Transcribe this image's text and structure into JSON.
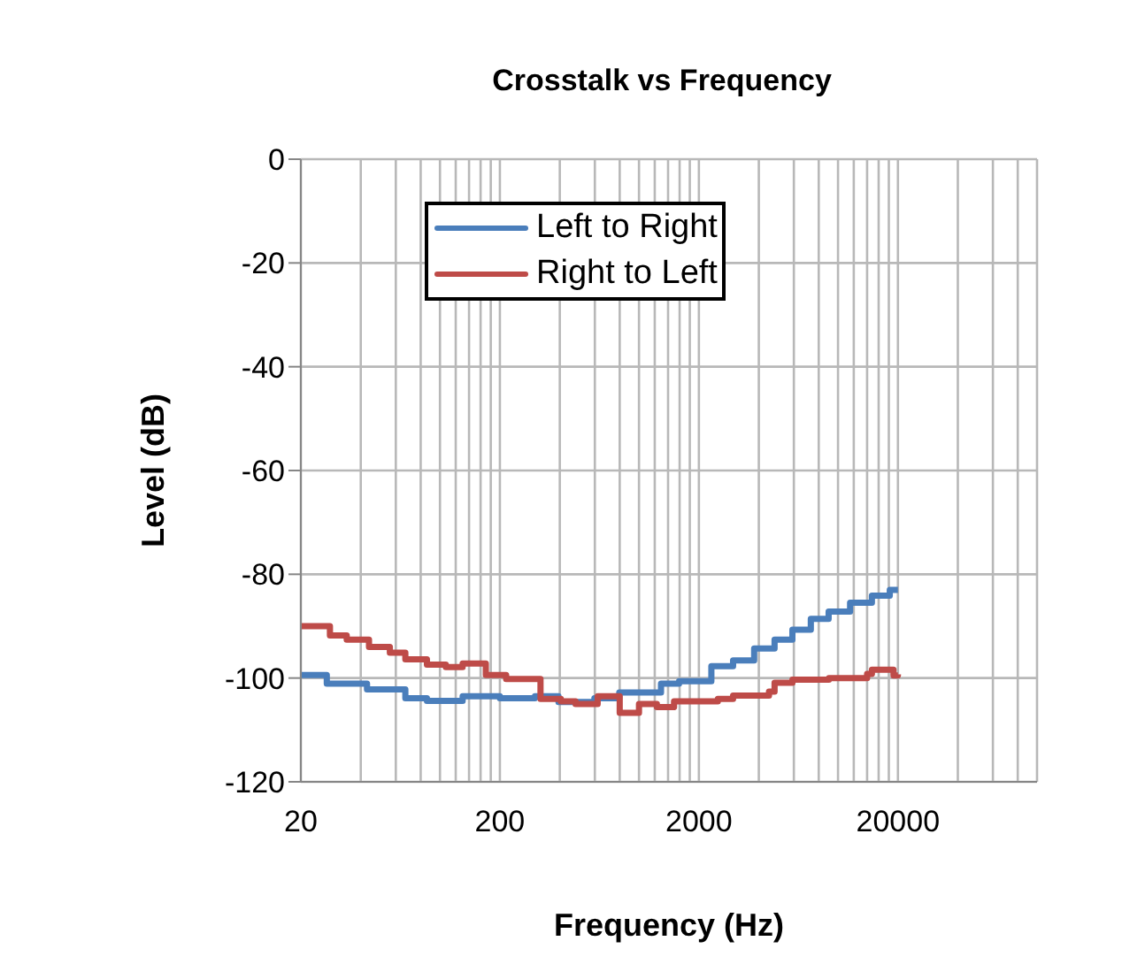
{
  "chart_data": {
    "type": "step",
    "title": "Crosstalk vs Frequency",
    "xlabel": "Frequency (Hz)",
    "ylabel": "Level (dB)",
    "log": "x",
    "grid": true,
    "legend": "top",
    "line_style": "solid",
    "marker": "none",
    "xlim": [
      20,
      100000
    ],
    "ylim": [
      -120,
      0
    ],
    "yticks": [
      -120,
      -100,
      -80,
      -60,
      -40,
      -20,
      0
    ],
    "xticks": [
      20,
      {
        "value": 40,
        "label": null
      },
      {
        "value": 60,
        "label": null
      },
      {
        "value": 80,
        "label": null
      },
      {
        "value": 100,
        "label": null
      },
      {
        "value": 120,
        "label": null
      },
      {
        "value": 140,
        "label": null
      },
      {
        "value": 160,
        "label": null
      },
      {
        "value": 180,
        "label": null
      },
      200,
      {
        "value": 400,
        "label": null
      },
      {
        "value": 600,
        "label": null
      },
      {
        "value": 800,
        "label": null
      },
      {
        "value": 1000,
        "label": null
      },
      {
        "value": 1200,
        "label": null
      },
      {
        "value": 1400,
        "label": null
      },
      {
        "value": 1600,
        "label": null
      },
      {
        "value": 1800,
        "label": null
      },
      2000,
      {
        "value": 4000,
        "label": null
      },
      {
        "value": 6000,
        "label": null
      },
      {
        "value": 8000,
        "label": null
      },
      {
        "value": 10000,
        "label": null
      },
      {
        "value": 12000,
        "label": null
      },
      {
        "value": 14000,
        "label": null
      },
      {
        "value": 16000,
        "label": null
      },
      {
        "value": 18000,
        "label": null
      },
      20000,
      {
        "value": 40000,
        "label": null
      },
      {
        "value": 60000,
        "label": null
      },
      {
        "value": 80000,
        "label": null
      },
      {
        "value": 100000,
        "label": null
      }
    ],
    "series": [
      {
        "name": "Left to Right",
        "color": "#4a7ebb",
        "x": [
          20,
          27,
          43,
          67,
          86,
          130,
          200,
          300,
          394,
          597,
          796,
          1290,
          1590,
          2310,
          2970,
          3790,
          4800,
          5900,
          7300,
          8970,
          11500,
          14800,
          18200,
          20000
        ],
        "values": [
          -99.4,
          -101.1,
          -102.2,
          -103.9,
          -104.4,
          -103.5,
          -103.9,
          -103.5,
          -104.6,
          -103.9,
          -102.8,
          -101.1,
          -100.6,
          -97.7,
          -96.6,
          -94.3,
          -92.6,
          -90.7,
          -88.6,
          -87.2,
          -85.5,
          -84.1,
          -83,
          -83
        ]
      },
      {
        "name": "Right to Left",
        "color": "#be4b48",
        "x": [
          20,
          28,
          34,
          44,
          56,
          67,
          86,
          107,
          130,
          170,
          215,
          320,
          405,
          480,
          620,
          800,
          1000,
          1230,
          1500,
          2490,
          2970,
          4500,
          4800,
          5900,
          9000,
          14000,
          14800,
          16700,
          19000,
          20000
        ],
        "values": [
          -90,
          -91.8,
          -92.6,
          -94,
          -95.1,
          -96.4,
          -97.4,
          -97.9,
          -97.2,
          -99.4,
          -100.2,
          -104,
          -104.5,
          -105,
          -103.5,
          -106.7,
          -105,
          -105.6,
          -104.5,
          -104,
          -103.4,
          -102.6,
          -100.9,
          -100.3,
          -100,
          -99.2,
          -98.4,
          -98.4,
          -99.5,
          -99.3
        ]
      }
    ]
  }
}
